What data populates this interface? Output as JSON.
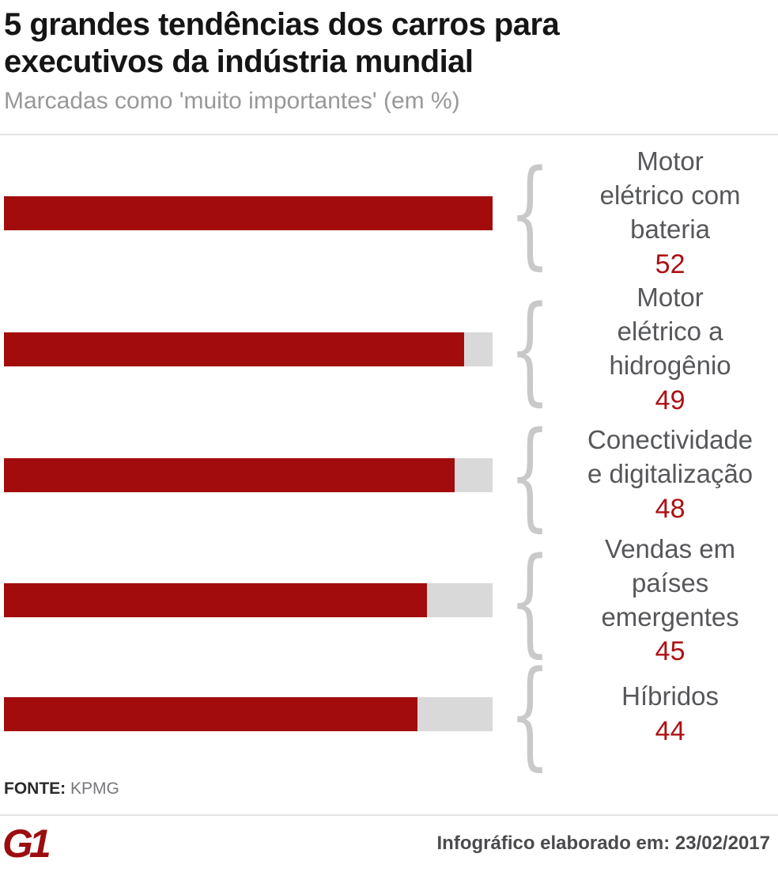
{
  "header": {
    "title": "5 grandes tendências dos carros para executivos da indústria mundial",
    "title_lines": [
      "5 grandes tendências dos carros para",
      "executivos da indústria mundial"
    ],
    "subtitle": "Marcadas como 'muito importantes' (em %)"
  },
  "chart_data": {
    "type": "bar",
    "orientation": "horizontal",
    "title": "5 grandes tendências dos carros para executivos da indústria mundial",
    "subtitle": "Marcadas como 'muito importantes' (em %)",
    "unit": "%",
    "value_axis_max": 52,
    "grid": false,
    "legend": false,
    "bar_color": "#a30c0d",
    "track_color": "#d9d9d9",
    "value_label_color": "#ad1114",
    "category_label_color": "#56575a",
    "categories": [
      "Motor elétrico com bateria",
      "Motor elétrico a hidrogênio",
      "Conectividade e digitalização",
      "Vendas em países emergentes",
      "Híbridos"
    ],
    "values": [
      52,
      49,
      48,
      45,
      44
    ],
    "items": [
      {
        "label": "Motor elétrico com bateria",
        "lines": [
          "Motor",
          "elétrico com",
          "bateria"
        ],
        "value": "52"
      },
      {
        "label": "Motor elétrico a hidrogênio",
        "lines": [
          "Motor",
          "elétrico a",
          "hidrogênio"
        ],
        "value": "49"
      },
      {
        "label": "Conectividade e digitalização",
        "lines": [
          "Conectividade",
          "e digitalização"
        ],
        "value": "48"
      },
      {
        "label": "Vendas em países emergentes",
        "lines": [
          "Vendas em",
          "países",
          "emergentes"
        ],
        "value": "45"
      },
      {
        "label": "Híbridos",
        "lines": [
          "Híbridos"
        ],
        "value": "44"
      }
    ]
  },
  "decor": {
    "brace": "{"
  },
  "source": {
    "label": "FONTE:",
    "name": "KPMG"
  },
  "footer": {
    "logo_text": "G1",
    "logo_color": "#9b0d10",
    "credit": "Infográfico elaborado em: 23/02/2017"
  }
}
